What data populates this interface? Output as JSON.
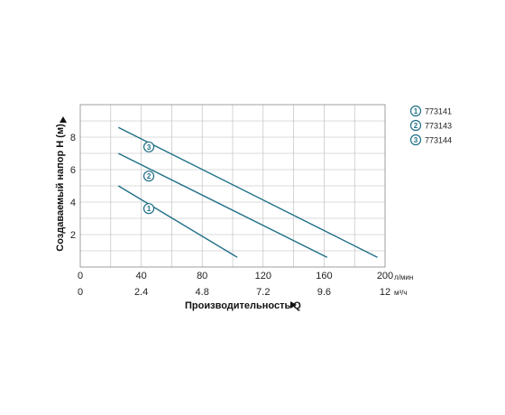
{
  "chart_data": {
    "type": "line",
    "xlabel": "Производительность Q",
    "ylabel": "Создаваемый напор H (м)",
    "x_unit_primary": "л/мин",
    "x_unit_secondary": "м³/ч",
    "xlim": [
      0,
      200
    ],
    "ylim": [
      0,
      10
    ],
    "grid": true,
    "legend_position": "top-right",
    "x_ticks_primary": [
      "0",
      "40",
      "80",
      "120",
      "160",
      "200"
    ],
    "x_ticks_secondary": [
      "0",
      "2.4",
      "4.8",
      "7.2",
      "9.6",
      "12"
    ],
    "x_ticks_primary_values": [
      0,
      40,
      80,
      120,
      160,
      200
    ],
    "y_ticks": [
      "2",
      "4",
      "6",
      "8"
    ],
    "y_ticks_values": [
      2,
      4,
      6,
      8
    ],
    "series": [
      {
        "marker": "1",
        "name": "773141",
        "x": [
          25,
          103
        ],
        "y": [
          5.0,
          0.6
        ],
        "label_at": [
          45,
          3.6
        ]
      },
      {
        "marker": "2",
        "name": "773143",
        "x": [
          25,
          162
        ],
        "y": [
          7.0,
          0.6
        ],
        "label_at": [
          45,
          5.6
        ]
      },
      {
        "marker": "3",
        "name": "773144",
        "x": [
          25,
          195
        ],
        "y": [
          8.6,
          0.6
        ],
        "label_at": [
          45,
          7.4
        ]
      }
    ],
    "colors": {
      "series": "#1f6f86",
      "grid": "#b8b8b8",
      "frame": "#888888"
    }
  }
}
